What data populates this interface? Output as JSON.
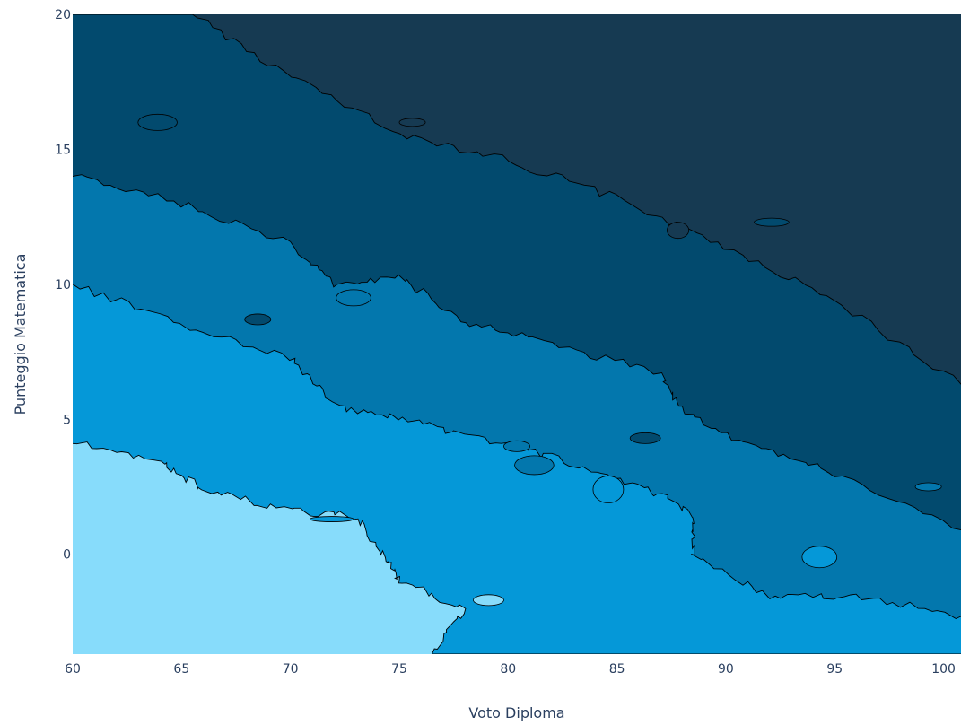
{
  "chart_data": {
    "type": "contour",
    "title": "",
    "xlabel": "Voto Diploma",
    "ylabel": "Punteggio Matematica",
    "xlim": [
      60,
      100.8
    ],
    "ylim": [
      -3.7,
      20
    ],
    "x_ticks": [
      60,
      65,
      70,
      75,
      80,
      85,
      90,
      95,
      100
    ],
    "y_ticks": [
      0,
      5,
      10,
      15,
      20
    ],
    "grid": false,
    "legend": "none",
    "levels": [
      {
        "name": "level-1",
        "color": "#87dcfb"
      },
      {
        "name": "level-2",
        "color": "#0598d8"
      },
      {
        "name": "level-3",
        "color": "#0377ad"
      },
      {
        "name": "level-4",
        "color": "#024a6e"
      },
      {
        "name": "level-5",
        "color": "#163a52"
      }
    ],
    "boundaries": [
      {
        "between": [
          "level-1",
          "level-2"
        ],
        "points": [
          [
            60,
            4.1
          ],
          [
            64,
            3.5
          ],
          [
            66,
            2.4
          ],
          [
            70,
            1.6
          ],
          [
            73,
            1.4
          ],
          [
            74.3,
            0
          ],
          [
            75,
            -1
          ],
          [
            78,
            -2
          ],
          [
            76.5,
            -3.7
          ]
        ]
      },
      {
        "between": [
          "level-2",
          "level-3"
        ],
        "points": [
          [
            60,
            10
          ],
          [
            65,
            8.5
          ],
          [
            70,
            7.3
          ],
          [
            72,
            5.5
          ],
          [
            75,
            5
          ],
          [
            78,
            4.4
          ],
          [
            82,
            3.6
          ],
          [
            86,
            2.6
          ],
          [
            88.5,
            1.5
          ],
          [
            88.5,
            0
          ],
          [
            92,
            -1.6
          ],
          [
            96,
            -1.5
          ],
          [
            100.8,
            -2.3
          ]
        ]
      },
      {
        "between": [
          "level-3",
          "level-4"
        ],
        "points": [
          [
            60,
            14
          ],
          [
            65,
            13
          ],
          [
            70,
            11.5
          ],
          [
            72,
            10
          ],
          [
            75,
            10.3
          ],
          [
            78,
            8.6
          ],
          [
            82,
            7.8
          ],
          [
            87,
            6.7
          ],
          [
            88,
            5.3
          ],
          [
            91,
            4
          ],
          [
            95,
            3
          ],
          [
            100.8,
            0.9
          ]
        ]
      },
      {
        "between": [
          "level-4",
          "level-5"
        ],
        "points": [
          [
            65.5,
            20
          ],
          [
            70,
            17.7
          ],
          [
            75,
            15.6
          ],
          [
            80,
            14.6
          ],
          [
            85,
            13.2
          ],
          [
            90,
            11.4
          ],
          [
            95,
            9.4
          ],
          [
            100.8,
            6.3
          ]
        ]
      }
    ],
    "islands": [
      {
        "x": 63.9,
        "y": 16,
        "rx": 0.9,
        "ry": 0.3,
        "level": "level-4"
      },
      {
        "x": 68.5,
        "y": 8.7,
        "rx": 0.6,
        "ry": 0.2,
        "level": "level-4"
      },
      {
        "x": 71.9,
        "y": 1.3,
        "rx": 1.0,
        "ry": 0.1,
        "level": "level-2"
      },
      {
        "x": 80.4,
        "y": 4,
        "rx": 0.6,
        "ry": 0.2,
        "level": "level-3"
      },
      {
        "x": 81.2,
        "y": 3.3,
        "rx": 0.9,
        "ry": 0.35,
        "level": "level-3"
      },
      {
        "x": 84.6,
        "y": 2.4,
        "rx": 0.7,
        "ry": 0.5,
        "level": "level-2"
      },
      {
        "x": 94.3,
        "y": -0.1,
        "rx": 0.8,
        "ry": 0.4,
        "level": "level-2"
      },
      {
        "x": 99.3,
        "y": 2.5,
        "rx": 0.6,
        "ry": 0.15,
        "level": "level-3"
      },
      {
        "x": 92.1,
        "y": 12.3,
        "rx": 0.8,
        "ry": 0.15,
        "level": "level-4"
      },
      {
        "x": 86.3,
        "y": 4.3,
        "rx": 0.7,
        "ry": 0.2,
        "level": "level-4"
      },
      {
        "x": 79.1,
        "y": -1.7,
        "rx": 0.7,
        "ry": 0.2,
        "level": "level-1"
      },
      {
        "x": 72.9,
        "y": 9.5,
        "rx": 0.8,
        "ry": 0.3,
        "level": "level-3"
      },
      {
        "x": 87.8,
        "y": 12,
        "rx": 0.5,
        "ry": 0.3,
        "level": "level-5"
      },
      {
        "x": 75.6,
        "y": 16,
        "rx": 0.6,
        "ry": 0.15,
        "level": "level-5"
      }
    ]
  }
}
